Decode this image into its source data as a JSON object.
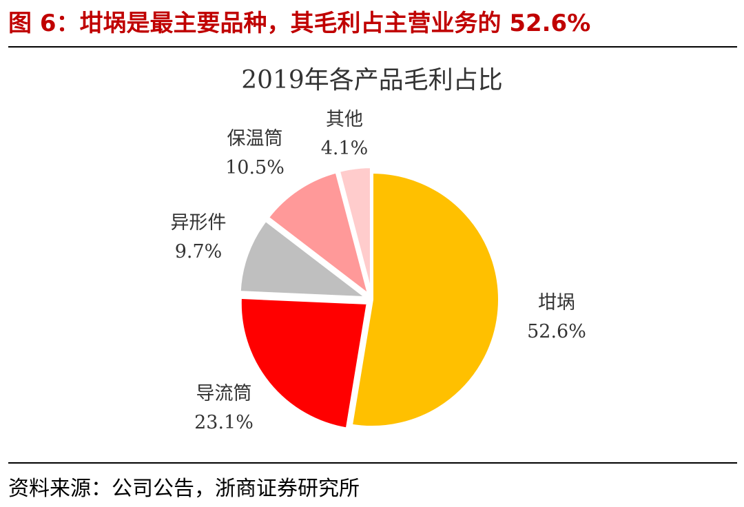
{
  "caption": "图 6：坩埚是最主要品种，其毛利占主营业务的 52.6%",
  "source": "资料来源：公司公告，浙商证券研究所",
  "chart_data": {
    "type": "pie",
    "title": "2019年各产品毛利占比",
    "slices": [
      {
        "label": "坩埚",
        "value": 52.6,
        "display": "52.6%",
        "color": "#FFC000"
      },
      {
        "label": "导流筒",
        "value": 23.1,
        "display": "23.1%",
        "color": "#FF0000"
      },
      {
        "label": "异形件",
        "value": 9.7,
        "display": "9.7%",
        "color": "#BFBFBF"
      },
      {
        "label": "保温筒",
        "value": 10.5,
        "display": "10.5%",
        "color": "#FF9999"
      },
      {
        "label": "其他",
        "value": 4.1,
        "display": "4.1%",
        "color": "#FFCCCC"
      }
    ],
    "start": "12 o'clock",
    "direction": "clockwise",
    "legend": "none"
  }
}
